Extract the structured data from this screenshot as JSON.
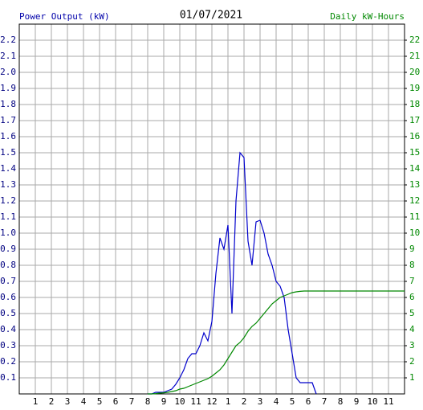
{
  "chart_data": {
    "type": "line",
    "title": "01/07/2021",
    "y_label": "Power Output (kW)",
    "y2_label": "Daily kW-Hours",
    "grid": true,
    "xlim": [
      0,
      24
    ],
    "xticks": [
      1,
      2,
      3,
      4,
      5,
      6,
      7,
      8,
      9,
      10,
      11,
      12,
      {
        "value": 13,
        "label": "1"
      },
      {
        "value": 14,
        "label": "2"
      },
      {
        "value": 15,
        "label": "3"
      },
      {
        "value": 16,
        "label": "4"
      },
      {
        "value": 17,
        "label": "5"
      },
      {
        "value": 18,
        "label": "6"
      },
      {
        "value": 19,
        "label": "7"
      },
      {
        "value": 20,
        "label": "8"
      },
      {
        "value": 21,
        "label": "9"
      },
      {
        "value": 22,
        "label": "10"
      },
      {
        "value": 23,
        "label": "11"
      }
    ],
    "ylim": [
      0,
      2.3
    ],
    "yticks": [
      0.1,
      0.2,
      0.3,
      0.4,
      0.5,
      0.6,
      0.7,
      0.8,
      0.9,
      {
        "value": 1,
        "label": "1.0"
      },
      1.1,
      1.2,
      1.3,
      1.4,
      1.5,
      1.6,
      1.7,
      1.8,
      1.9,
      {
        "value": 2,
        "label": "2.0"
      },
      2.1,
      2.2
    ],
    "y2lim": [
      0,
      23
    ],
    "y2ticks": [
      1,
      2,
      3,
      4,
      5,
      6,
      7,
      8,
      9,
      10,
      11,
      12,
      13,
      14,
      15,
      16,
      17,
      18,
      19,
      20,
      21,
      22
    ],
    "x": [
      8,
      8.25,
      8.5,
      8.75,
      9,
      9.25,
      9.5,
      9.75,
      10,
      10.25,
      10.5,
      10.75,
      11,
      11.25,
      11.5,
      11.75,
      12,
      12.25,
      12.5,
      12.75,
      13,
      13.25,
      13.5,
      13.75,
      14,
      14.25,
      14.5,
      14.75,
      15,
      15.25,
      15.5,
      15.75,
      16,
      16.25,
      16.5,
      16.75,
      17,
      17.25,
      17.5,
      17.75,
      18,
      18.25,
      18.5,
      18.75,
      19,
      19.25,
      19.5,
      19.75,
      20,
      20.25,
      20.5,
      20.75,
      21,
      21.25,
      21.5,
      21.75,
      22,
      22.25,
      22.5,
      22.75,
      23,
      23.25,
      23.5,
      23.75,
      24
    ],
    "series": [
      {
        "name": "Power Output (kW)",
        "color": "#0000cc",
        "axis": "y",
        "values": [
          0,
          0,
          0.01,
          0.01,
          0.01,
          0.02,
          0.03,
          0.06,
          0.1,
          0.15,
          0.22,
          0.25,
          0.25,
          0.3,
          0.38,
          0.33,
          0.45,
          0.75,
          0.97,
          0.9,
          1.05,
          0.5,
          1.2,
          1.5,
          1.47,
          0.95,
          0.8,
          1.07,
          1.08,
          1.0,
          0.87,
          0.8,
          0.7,
          0.67,
          0.6,
          0.4,
          0.25,
          0.1,
          0.07,
          0.07,
          0.07,
          0.07,
          0,
          null,
          null,
          null,
          null,
          null,
          null,
          null,
          null,
          null,
          null,
          null,
          null,
          null,
          null,
          null,
          null,
          null,
          null,
          null,
          null,
          null,
          null
        ]
      },
      {
        "name": "Daily kW-Hours",
        "color": "#008800",
        "axis": "y2",
        "values": [
          0,
          0,
          0.02,
          0.05,
          0.07,
          0.1,
          0.15,
          0.2,
          0.3,
          0.35,
          0.45,
          0.55,
          0.65,
          0.75,
          0.85,
          0.95,
          1.1,
          1.3,
          1.5,
          1.8,
          2.2,
          2.6,
          3.0,
          3.2,
          3.5,
          3.9,
          4.2,
          4.4,
          4.7,
          5.0,
          5.3,
          5.6,
          5.8,
          6.0,
          6.1,
          6.2,
          6.3,
          6.35,
          6.38,
          6.4,
          6.4,
          6.4,
          6.4,
          6.4,
          6.4,
          6.4,
          6.4,
          6.4,
          6.4,
          6.4,
          6.4,
          6.4,
          6.4,
          6.4,
          6.4,
          6.4,
          6.4,
          6.4,
          6.4,
          6.4,
          6.4,
          6.4,
          6.4,
          6.4,
          6.4
        ]
      }
    ]
  }
}
